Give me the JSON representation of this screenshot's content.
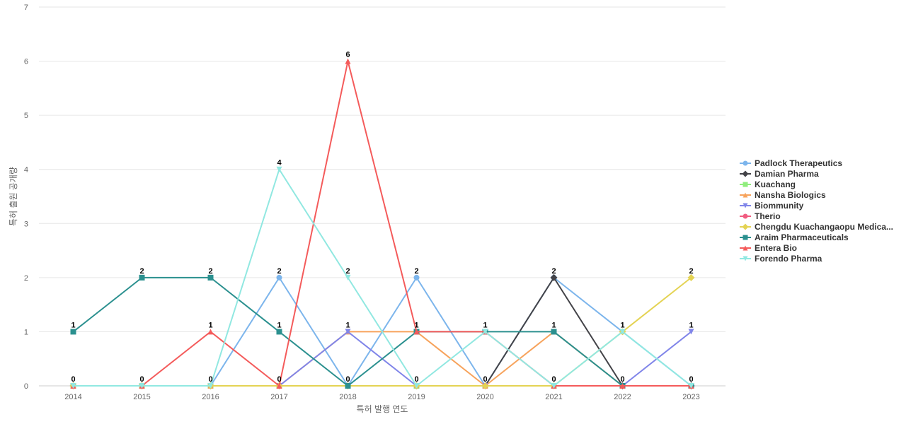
{
  "chart_data": {
    "type": "line",
    "title": "",
    "xlabel": "특허 발행 연도",
    "ylabel": "특허 출원 공개량",
    "categories": [
      "2014",
      "2015",
      "2016",
      "2017",
      "2018",
      "2019",
      "2020",
      "2021",
      "2022",
      "2023"
    ],
    "ylim": [
      0,
      7
    ],
    "yticks": [
      0,
      1,
      2,
      3,
      4,
      5,
      6,
      7
    ],
    "grid": true,
    "legend_position": "right",
    "series": [
      {
        "name": "Padlock Therapeutics",
        "values": [
          0,
          0,
          0,
          2,
          0,
          2,
          0,
          2,
          1,
          0
        ],
        "color": "#7cb5ec",
        "marker": "circle"
      },
      {
        "name": "Damian Pharma",
        "values": [
          0,
          0,
          0,
          0,
          0,
          0,
          0,
          2,
          0,
          0
        ],
        "color": "#434348",
        "marker": "diamond"
      },
      {
        "name": "Kuachang",
        "values": [
          0,
          0,
          0,
          0,
          0,
          0,
          0,
          0,
          0,
          0
        ],
        "color": "#90ed7d",
        "marker": "square"
      },
      {
        "name": "Nansha Biologics",
        "values": [
          0,
          0,
          0,
          0,
          1,
          1,
          0,
          1,
          0,
          0
        ],
        "color": "#f7a35c",
        "marker": "triangle"
      },
      {
        "name": "Biommunity",
        "values": [
          0,
          0,
          0,
          0,
          1,
          0,
          0,
          0,
          0,
          1
        ],
        "color": "#8085e9",
        "marker": "triangle-down"
      },
      {
        "name": "Therio",
        "values": [
          0,
          0,
          0,
          0,
          0,
          0,
          0,
          0,
          0,
          0
        ],
        "color": "#f15c80",
        "marker": "circle"
      },
      {
        "name": "Chengdu Kuachangaopu Medica...",
        "values": [
          0,
          0,
          0,
          0,
          0,
          0,
          0,
          0,
          1,
          2
        ],
        "color": "#e4d354",
        "marker": "diamond"
      },
      {
        "name": "Araim Pharmaceuticals",
        "values": [
          1,
          2,
          2,
          1,
          0,
          1,
          1,
          1,
          0,
          0
        ],
        "color": "#2b908f",
        "marker": "square"
      },
      {
        "name": "Entera Bio",
        "values": [
          0,
          0,
          1,
          0,
          6,
          1,
          1,
          0,
          0,
          0
        ],
        "color": "#f45b5b",
        "marker": "triangle"
      },
      {
        "name": "Forendo Pharma",
        "values": [
          0,
          0,
          0,
          4,
          2,
          0,
          1,
          0,
          1,
          0
        ],
        "color": "#91e8e1",
        "marker": "triangle-down"
      }
    ],
    "data_labels": [
      {
        "category": "2014",
        "values": [
          "1",
          "0"
        ]
      },
      {
        "category": "2015",
        "values": [
          "2",
          "0"
        ]
      },
      {
        "category": "2016",
        "values": [
          "2",
          "1",
          "0"
        ]
      },
      {
        "category": "2017",
        "values": [
          "4",
          "2",
          "1",
          "0"
        ]
      },
      {
        "category": "2018",
        "values": [
          "6",
          "2",
          "1",
          "0"
        ]
      },
      {
        "category": "2019",
        "values": [
          "2",
          "1",
          "0"
        ]
      },
      {
        "category": "2020",
        "values": [
          "1",
          "0"
        ]
      },
      {
        "category": "2021",
        "values": [
          "2",
          "1",
          "0"
        ]
      },
      {
        "category": "2022",
        "values": [
          "1",
          "0"
        ]
      },
      {
        "category": "2023",
        "values": [
          "2",
          "1",
          "0"
        ]
      }
    ]
  }
}
